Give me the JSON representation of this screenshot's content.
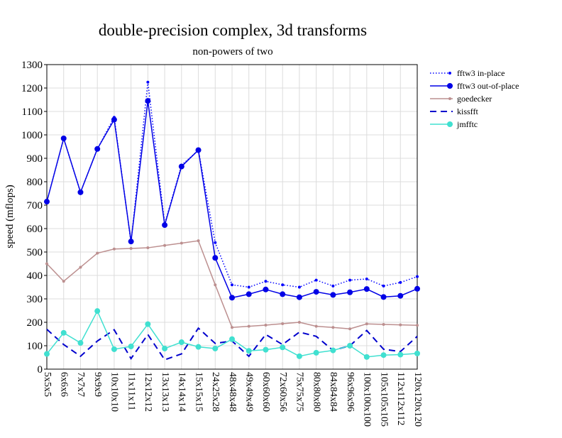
{
  "chart_data": {
    "type": "line",
    "title": "double-precision complex, 3d transforms",
    "subtitle": "non-powers of two",
    "y_label": "speed (mflops)",
    "categories": [
      "5x5x5",
      "6x6x6",
      "7x7x7",
      "9x9x9",
      "10x10x10",
      "11x11x11",
      "12x12x12",
      "13x13x13",
      "14x14x14",
      "15x15x15",
      "24x25x28",
      "48x48x48",
      "49x49x49",
      "60x60x60",
      "72x60x56",
      "75x75x75",
      "80x80x80",
      "84x84x84",
      "96x96x96",
      "100x100x100",
      "105x105x105",
      "112x112x112",
      "120x120x120"
    ],
    "series": [
      {
        "name": "fftw3 in-place",
        "color": "#0000ff",
        "dash": "dotted",
        "marker": "small",
        "values": [
          715,
          985,
          755,
          940,
          1075,
          540,
          1225,
          620,
          870,
          935,
          540,
          360,
          350,
          375,
          360,
          350,
          380,
          355,
          380,
          385,
          355,
          370,
          395
        ]
      },
      {
        "name": "fftw3 out-of-place",
        "color": "#0000e6",
        "dash": "solid",
        "marker": "large",
        "values": [
          715,
          985,
          755,
          940,
          1065,
          545,
          1145,
          615,
          865,
          935,
          475,
          305,
          320,
          340,
          320,
          307,
          330,
          317,
          328,
          342,
          308,
          313,
          343
        ]
      },
      {
        "name": "goedecker",
        "color": "#bc8f8f",
        "dash": "solid",
        "marker": "small",
        "values": [
          450,
          375,
          435,
          495,
          513,
          515,
          518,
          528,
          538,
          548,
          360,
          178,
          183,
          188,
          194,
          200,
          183,
          178,
          172,
          193,
          191,
          189,
          187
        ]
      },
      {
        "name": "kissfft",
        "color": "#0000cd",
        "dash": "dashed",
        "marker": "none",
        "values": [
          170,
          105,
          55,
          120,
          168,
          45,
          148,
          40,
          65,
          175,
          110,
          120,
          55,
          148,
          105,
          158,
          140,
          80,
          100,
          165,
          85,
          75,
          140
        ]
      },
      {
        "name": "jmfftc",
        "color": "#40e0d0",
        "dash": "solid",
        "marker": "large",
        "values": [
          65,
          155,
          112,
          248,
          85,
          97,
          192,
          88,
          115,
          95,
          88,
          128,
          78,
          83,
          93,
          55,
          70,
          80,
          100,
          52,
          60,
          62,
          67
        ]
      }
    ],
    "ylim": [
      0,
      1300
    ],
    "yticks": [
      0,
      100,
      200,
      300,
      400,
      500,
      600,
      700,
      800,
      900,
      1000,
      1100,
      1200,
      1300
    ],
    "grid": true,
    "legend": "right"
  }
}
